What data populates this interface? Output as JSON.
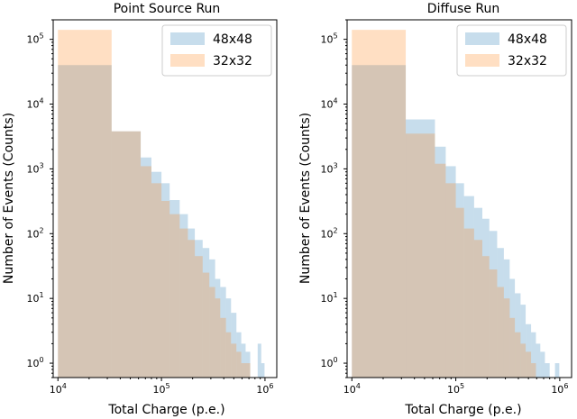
{
  "chart_data": [
    {
      "type": "histogram",
      "title": "Point Source Run",
      "xlabel": "Total Charge (p.e.)",
      "ylabel": "Number of Events (Counts)",
      "xscale": "log",
      "yscale": "log",
      "xlim": [
        9000,
        1300000
      ],
      "ylim": [
        0.6,
        200000
      ],
      "xticks": [
        {
          "base": "10",
          "exp": "4",
          "value": 10000
        },
        {
          "base": "10",
          "exp": "5",
          "value": 100000
        },
        {
          "base": "10",
          "exp": "6",
          "value": 1000000
        }
      ],
      "yticks": [
        {
          "base": "10",
          "exp": "0",
          "value": 1
        },
        {
          "base": "10",
          "exp": "1",
          "value": 10
        },
        {
          "base": "10",
          "exp": "2",
          "value": 100
        },
        {
          "base": "10",
          "exp": "3",
          "value": 1000
        },
        {
          "base": "10",
          "exp": "4",
          "value": 10000
        },
        {
          "base": "10",
          "exp": "5",
          "value": 100000
        }
      ],
      "legend_position": "top-right",
      "series": [
        {
          "name": "48x48",
          "color": "#1f77b4",
          "alpha": 0.25,
          "bins": [
            [
              10000,
              33000,
              40000
            ],
            [
              33000,
              63000,
              3800
            ],
            [
              63000,
              80000,
              1500
            ],
            [
              80000,
              100000,
              900
            ],
            [
              100000,
              120000,
              600
            ],
            [
              120000,
              150000,
              330
            ],
            [
              150000,
              180000,
              200
            ],
            [
              180000,
              210000,
              120
            ],
            [
              210000,
              250000,
              80
            ],
            [
              250000,
              290000,
              60
            ],
            [
              290000,
              330000,
              40
            ],
            [
              330000,
              370000,
              20
            ],
            [
              370000,
              420000,
              15
            ],
            [
              420000,
              470000,
              10
            ],
            [
              470000,
              530000,
              6
            ],
            [
              530000,
              590000,
              3
            ],
            [
              590000,
              650000,
              2
            ],
            [
              650000,
              720000,
              1.5
            ],
            [
              850000,
              920000,
              2
            ],
            [
              920000,
              990000,
              1
            ]
          ]
        },
        {
          "name": "32x32",
          "color": "#ff7f0e",
          "alpha": 0.25,
          "bins": [
            [
              10000,
              33000,
              140000
            ],
            [
              33000,
              63000,
              3800
            ],
            [
              63000,
              80000,
              1100
            ],
            [
              80000,
              100000,
              600
            ],
            [
              100000,
              120000,
              320
            ],
            [
              120000,
              150000,
              200
            ],
            [
              150000,
              180000,
              120
            ],
            [
              180000,
              210000,
              80
            ],
            [
              210000,
              250000,
              45
            ],
            [
              250000,
              290000,
              25
            ],
            [
              290000,
              330000,
              15
            ],
            [
              330000,
              370000,
              10
            ],
            [
              370000,
              420000,
              5
            ],
            [
              420000,
              470000,
              3
            ],
            [
              470000,
              530000,
              2
            ],
            [
              530000,
              590000,
              1.5
            ],
            [
              590000,
              650000,
              1
            ],
            [
              650000,
              720000,
              1
            ]
          ]
        }
      ]
    },
    {
      "type": "histogram",
      "title": "Diffuse Run",
      "xlabel": "Total Charge (p.e.)",
      "ylabel": "Number of Events (Counts)",
      "xscale": "log",
      "yscale": "log",
      "xlim": [
        9000,
        1300000
      ],
      "ylim": [
        0.6,
        200000
      ],
      "xticks": [
        {
          "base": "10",
          "exp": "4",
          "value": 10000
        },
        {
          "base": "10",
          "exp": "5",
          "value": 100000
        },
        {
          "base": "10",
          "exp": "6",
          "value": 1000000
        }
      ],
      "yticks": [
        {
          "base": "10",
          "exp": "0",
          "value": 1
        },
        {
          "base": "10",
          "exp": "1",
          "value": 10
        },
        {
          "base": "10",
          "exp": "2",
          "value": 100
        },
        {
          "base": "10",
          "exp": "3",
          "value": 1000
        },
        {
          "base": "10",
          "exp": "4",
          "value": 10000
        },
        {
          "base": "10",
          "exp": "5",
          "value": 100000
        }
      ],
      "legend_position": "top-right",
      "series": [
        {
          "name": "48x48",
          "color": "#1f77b4",
          "alpha": 0.25,
          "bins": [
            [
              10000,
              33000,
              40000
            ],
            [
              33000,
              63000,
              5800
            ],
            [
              63000,
              80000,
              2200
            ],
            [
              80000,
              100000,
              1100
            ],
            [
              100000,
              120000,
              600
            ],
            [
              120000,
              150000,
              380
            ],
            [
              150000,
              180000,
              250
            ],
            [
              180000,
              210000,
              170
            ],
            [
              210000,
              250000,
              110
            ],
            [
              250000,
              290000,
              60
            ],
            [
              290000,
              330000,
              40
            ],
            [
              330000,
              370000,
              20
            ],
            [
              370000,
              420000,
              12
            ],
            [
              420000,
              470000,
              8
            ],
            [
              470000,
              530000,
              4
            ],
            [
              530000,
              590000,
              3
            ],
            [
              590000,
              650000,
              2
            ],
            [
              650000,
              720000,
              1.5
            ],
            [
              720000,
              800000,
              1
            ],
            [
              900000,
              990000,
              1
            ]
          ]
        },
        {
          "name": "32x32",
          "color": "#ff7f0e",
          "alpha": 0.25,
          "bins": [
            [
              10000,
              33000,
              140000
            ],
            [
              33000,
              63000,
              3500
            ],
            [
              63000,
              80000,
              1200
            ],
            [
              80000,
              100000,
              600
            ],
            [
              100000,
              120000,
              250
            ],
            [
              120000,
              150000,
              120
            ],
            [
              150000,
              180000,
              80
            ],
            [
              180000,
              210000,
              45
            ],
            [
              210000,
              250000,
              28
            ],
            [
              250000,
              290000,
              15
            ],
            [
              290000,
              330000,
              10
            ],
            [
              330000,
              370000,
              5
            ],
            [
              370000,
              420000,
              3
            ],
            [
              420000,
              470000,
              2
            ],
            [
              470000,
              530000,
              1.5
            ],
            [
              530000,
              590000,
              1
            ]
          ]
        }
      ]
    }
  ]
}
